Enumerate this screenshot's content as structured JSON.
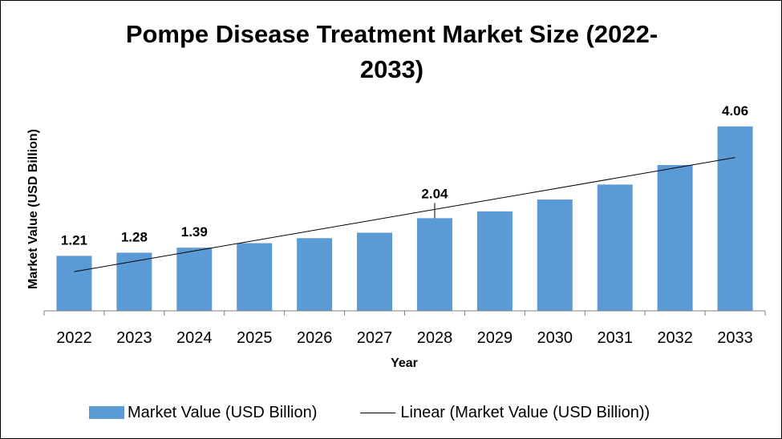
{
  "chart_data": {
    "type": "bar",
    "title": "Pompe Disease Treatment Market Size (2022-2033)",
    "xlabel": "Year",
    "ylabel": "Market Value (USD Billion)",
    "categories": [
      "2022",
      "2023",
      "2024",
      "2025",
      "2026",
      "2027",
      "2028",
      "2029",
      "2030",
      "2031",
      "2032",
      "2033"
    ],
    "series": [
      {
        "name": "Market Value (USD Billion)",
        "values": [
          1.21,
          1.28,
          1.39,
          1.49,
          1.6,
          1.72,
          2.04,
          2.19,
          2.45,
          2.78,
          3.21,
          4.06
        ],
        "color": "#5B9BD5"
      }
    ],
    "data_labels": [
      {
        "index": 0,
        "text": "1.21"
      },
      {
        "index": 1,
        "text": "1.28"
      },
      {
        "index": 2,
        "text": "1.39"
      },
      {
        "index": 6,
        "text": "2.04"
      },
      {
        "index": 11,
        "text": "4.06"
      }
    ],
    "trendline": {
      "name": "Linear (Market Value (USD Billion))",
      "type": "linear",
      "color": "#000000"
    },
    "ylim": [
      0,
      4.5
    ],
    "grid": false,
    "legend_position": "bottom"
  }
}
